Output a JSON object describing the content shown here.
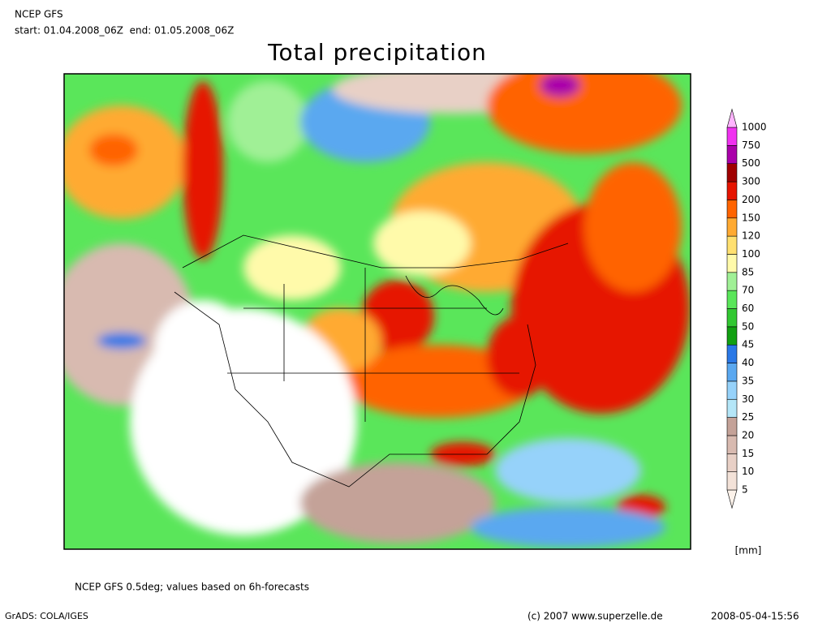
{
  "header": {
    "line1": "NCEP GFS",
    "line2": "start: 01.04.2008_06Z  end: 01.05.2008_06Z"
  },
  "title": "Total precipitation",
  "legend": {
    "unit": "[mm]",
    "below_color": "#fcf2ea",
    "levels": [
      {
        "label": 5,
        "color": "#f3e2d8"
      },
      {
        "label": 10,
        "color": "#e8d0c6"
      },
      {
        "label": 15,
        "color": "#d8bab0"
      },
      {
        "label": 20,
        "color": "#c4a298"
      },
      {
        "label": 25,
        "color": "#b4e6f8"
      },
      {
        "label": 30,
        "color": "#96d2fa"
      },
      {
        "label": 35,
        "color": "#5aa8f0"
      },
      {
        "label": 40,
        "color": "#2a78e6"
      },
      {
        "label": 45,
        "color": "#12a012"
      },
      {
        "label": 50,
        "color": "#32c832"
      },
      {
        "label": 60,
        "color": "#5ae65a"
      },
      {
        "label": 70,
        "color": "#a0f096"
      },
      {
        "label": 85,
        "color": "#fffaaa"
      },
      {
        "label": 100,
        "color": "#ffe070"
      },
      {
        "label": 120,
        "color": "#ffaa32"
      },
      {
        "label": 150,
        "color": "#ff6400"
      },
      {
        "label": 200,
        "color": "#e61400"
      },
      {
        "label": 300,
        "color": "#a00000"
      },
      {
        "label": 500,
        "color": "#aa00aa"
      },
      {
        "label": 750,
        "color": "#f032f0"
      },
      {
        "label": 1000,
        "color": "#ffb4ff"
      }
    ]
  },
  "footer": {
    "note": "NCEP GFS 0.5deg; values based on 6h-forecasts",
    "software": "GrADS: COLA/IGES",
    "copyright": "(c) 2007 www.superzelle.de",
    "timestamp": "2008-05-04-15:56"
  }
}
